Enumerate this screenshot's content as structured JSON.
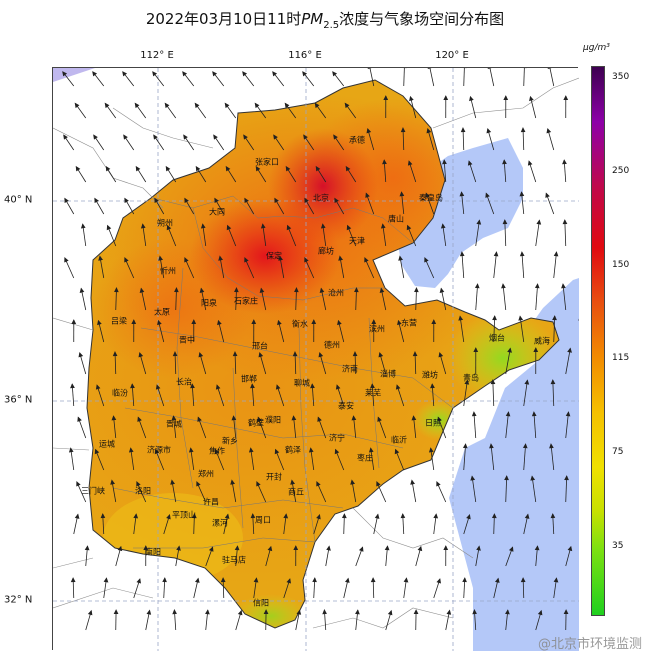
{
  "title": {
    "prefix": "2022年03月10日11时",
    "pm": "PM",
    "pm_sub": "2.5",
    "suffix": "浓度与气象场空间分布图"
  },
  "lon_ticks": [
    "112° E",
    "116° E",
    "120° E"
  ],
  "lat_ticks": [
    "40° N",
    "36° N",
    "32° N"
  ],
  "colorbar": {
    "unit": "μg/m³",
    "ticks": [
      "350",
      "250",
      "150",
      "115",
      "75",
      "35"
    ]
  },
  "cities": [
    "承德",
    "张家口",
    "北京",
    "秦皇岛",
    "大同",
    "朔州",
    "唐山",
    "天津",
    "廊坊",
    "保定",
    "忻州",
    "沧州",
    "石家庄",
    "阳泉",
    "太原",
    "衡水",
    "吕梁",
    "滨州",
    "东营",
    "烟台",
    "威海",
    "晋中",
    "德州",
    "邢台",
    "济南",
    "淄博",
    "潍坊",
    "青岛",
    "长治",
    "邯郸",
    "聊城",
    "临汾",
    "莱芜",
    "泰安",
    "日照",
    "晋城",
    "濮阳",
    "鹤壁",
    "济宁",
    "临沂",
    "运城",
    "新乡",
    "焦作",
    "济源市",
    "鹤泽",
    "枣庄",
    "三门峡",
    "郑州",
    "开封",
    "洛阳",
    "商丘",
    "许昌",
    "平顶山",
    "漯河",
    "周口",
    "南阳",
    "驻马店",
    "信阳"
  ],
  "watermark": "@北京市环境监测"
}
